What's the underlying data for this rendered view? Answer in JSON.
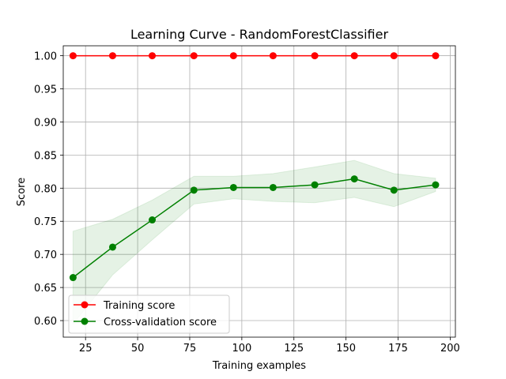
{
  "chart_data": {
    "type": "line",
    "title": "Learning Curve - RandomForestClassifier",
    "xlabel": "Training examples",
    "ylabel": "Score",
    "xlim": [
      14.3,
      202.5
    ],
    "ylim": [
      0.575,
      1.015
    ],
    "xticks": [
      25,
      50,
      75,
      100,
      125,
      150,
      175,
      200
    ],
    "yticks": [
      0.6,
      0.65,
      0.7,
      0.75,
      0.8,
      0.85,
      0.9,
      0.95,
      1.0
    ],
    "grid": true,
    "legend_position": "lower-left",
    "x": [
      19,
      38,
      57,
      77,
      96,
      115,
      135,
      154,
      173,
      193
    ],
    "series": [
      {
        "name": "Training score",
        "color": "#ff0000",
        "values": [
          1.0,
          1.0,
          1.0,
          1.0,
          1.0,
          1.0,
          1.0,
          1.0,
          1.0,
          1.0
        ],
        "upper": [
          1.0,
          1.0,
          1.0,
          1.0,
          1.0,
          1.0,
          1.0,
          1.0,
          1.0,
          1.0
        ],
        "lower": [
          1.0,
          1.0,
          1.0,
          1.0,
          1.0,
          1.0,
          1.0,
          1.0,
          1.0,
          1.0
        ]
      },
      {
        "name": "Cross-validation score",
        "color": "#008000",
        "values": [
          0.665,
          0.711,
          0.752,
          0.797,
          0.801,
          0.801,
          0.805,
          0.814,
          0.797,
          0.805
        ],
        "upper": [
          0.735,
          0.753,
          0.782,
          0.818,
          0.818,
          0.822,
          0.832,
          0.842,
          0.822,
          0.815
        ],
        "lower": [
          0.595,
          0.669,
          0.722,
          0.776,
          0.784,
          0.78,
          0.778,
          0.786,
          0.772,
          0.795
        ]
      }
    ]
  }
}
